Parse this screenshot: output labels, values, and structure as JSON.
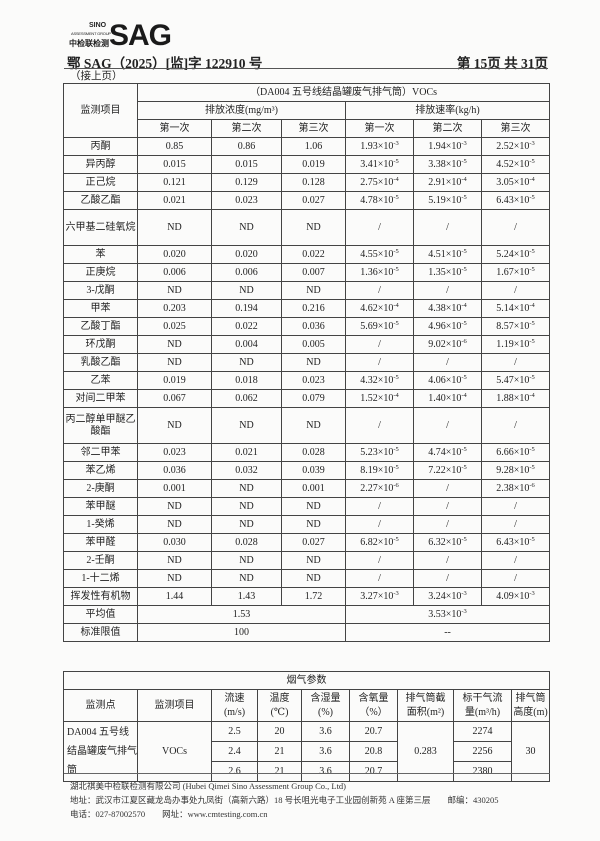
{
  "header": {
    "logo": {
      "sino": "SINO",
      "group": "ASSESSMENT GROUP",
      "cn": "中检联检测",
      "sag": "SAG"
    },
    "doc_number": "鄂 SAG（2025）[监]字 122910 号",
    "page": "第 15页  共 31页",
    "continued": "（接上页）"
  },
  "main_table": {
    "item_header": "监测项目",
    "title": "（DA004 五号线结晶罐废气排气筒）VOCs",
    "conc_header": "排放浓度(mg/m³)",
    "rate_header": "排放速率(kg/h)",
    "runs": [
      "第一次",
      "第二次",
      "第三次",
      "第一次",
      "第二次",
      "第三次"
    ],
    "rows": [
      {
        "name": "丙酮",
        "conc": [
          "0.85",
          "0.86",
          "1.06"
        ],
        "rate": [
          {
            "b": "1.93×10",
            "e": "-3"
          },
          {
            "b": "1.94×10",
            "e": "-3"
          },
          {
            "b": "2.52×10",
            "e": "-3"
          }
        ]
      },
      {
        "name": "异丙醇",
        "conc": [
          "0.015",
          "0.015",
          "0.019"
        ],
        "rate": [
          {
            "b": "3.41×10",
            "e": "-5"
          },
          {
            "b": "3.38×10",
            "e": "-5"
          },
          {
            "b": "4.52×10",
            "e": "-5"
          }
        ]
      },
      {
        "name": "正己烷",
        "conc": [
          "0.121",
          "0.129",
          "0.128"
        ],
        "rate": [
          {
            "b": "2.75×10",
            "e": "-4"
          },
          {
            "b": "2.91×10",
            "e": "-4"
          },
          {
            "b": "3.05×10",
            "e": "-4"
          }
        ]
      },
      {
        "name": "乙酸乙酯",
        "conc": [
          "0.021",
          "0.023",
          "0.027"
        ],
        "rate": [
          {
            "b": "4.78×10",
            "e": "-5"
          },
          {
            "b": "5.19×10",
            "e": "-5"
          },
          {
            "b": "6.43×10",
            "e": "-5"
          }
        ]
      },
      {
        "name": "六甲基二硅氧烷",
        "conc": [
          "ND",
          "ND",
          "ND"
        ],
        "rate": [
          {
            "b": "/"
          },
          {
            "b": "/"
          },
          {
            "b": "/"
          }
        ],
        "double": true
      },
      {
        "name": "苯",
        "conc": [
          "0.020",
          "0.020",
          "0.022"
        ],
        "rate": [
          {
            "b": "4.55×10",
            "e": "-5"
          },
          {
            "b": "4.51×10",
            "e": "-5"
          },
          {
            "b": "5.24×10",
            "e": "-5"
          }
        ]
      },
      {
        "name": "正庚烷",
        "conc": [
          "0.006",
          "0.006",
          "0.007"
        ],
        "rate": [
          {
            "b": "1.36×10",
            "e": "-5"
          },
          {
            "b": "1.35×10",
            "e": "-5"
          },
          {
            "b": "1.67×10",
            "e": "-5"
          }
        ]
      },
      {
        "name": "3-戊酮",
        "conc": [
          "ND",
          "ND",
          "ND"
        ],
        "rate": [
          {
            "b": "/"
          },
          {
            "b": "/"
          },
          {
            "b": "/"
          }
        ]
      },
      {
        "name": "甲苯",
        "conc": [
          "0.203",
          "0.194",
          "0.216"
        ],
        "rate": [
          {
            "b": "4.62×10",
            "e": "-4"
          },
          {
            "b": "4.38×10",
            "e": "-4"
          },
          {
            "b": "5.14×10",
            "e": "-4"
          }
        ]
      },
      {
        "name": "乙酸丁酯",
        "conc": [
          "0.025",
          "0.022",
          "0.036"
        ],
        "rate": [
          {
            "b": "5.69×10",
            "e": "-5"
          },
          {
            "b": "4.96×10",
            "e": "-5"
          },
          {
            "b": "8.57×10",
            "e": "-5"
          }
        ]
      },
      {
        "name": "环戊酮",
        "conc": [
          "ND",
          "0.004",
          "0.005"
        ],
        "rate": [
          {
            "b": "/"
          },
          {
            "b": "9.02×10",
            "e": "-6"
          },
          {
            "b": "1.19×10",
            "e": "-5"
          }
        ]
      },
      {
        "name": "乳酸乙酯",
        "conc": [
          "ND",
          "ND",
          "ND"
        ],
        "rate": [
          {
            "b": "/"
          },
          {
            "b": "/"
          },
          {
            "b": "/"
          }
        ]
      },
      {
        "name": "乙苯",
        "conc": [
          "0.019",
          "0.018",
          "0.023"
        ],
        "rate": [
          {
            "b": "4.32×10",
            "e": "-5"
          },
          {
            "b": "4.06×10",
            "e": "-5"
          },
          {
            "b": "5.47×10",
            "e": "-5"
          }
        ]
      },
      {
        "name": "对间二甲苯",
        "conc": [
          "0.067",
          "0.062",
          "0.079"
        ],
        "rate": [
          {
            "b": "1.52×10",
            "e": "-4"
          },
          {
            "b": "1.40×10",
            "e": "-4"
          },
          {
            "b": "1.88×10",
            "e": "-4"
          }
        ]
      },
      {
        "name": "丙二醇单甲醚乙酸酯",
        "conc": [
          "ND",
          "ND",
          "ND"
        ],
        "rate": [
          {
            "b": "/"
          },
          {
            "b": "/"
          },
          {
            "b": "/"
          }
        ],
        "double": true
      },
      {
        "name": "邻二甲苯",
        "conc": [
          "0.023",
          "0.021",
          "0.028"
        ],
        "rate": [
          {
            "b": "5.23×10",
            "e": "-5"
          },
          {
            "b": "4.74×10",
            "e": "-5"
          },
          {
            "b": "6.66×10",
            "e": "-5"
          }
        ]
      },
      {
        "name": "苯乙烯",
        "conc": [
          "0.036",
          "0.032",
          "0.039"
        ],
        "rate": [
          {
            "b": "8.19×10",
            "e": "-5"
          },
          {
            "b": "7.22×10",
            "e": "-5"
          },
          {
            "b": "9.28×10",
            "e": "-5"
          }
        ]
      },
      {
        "name": "2-庚酮",
        "conc": [
          "0.001",
          "ND",
          "0.001"
        ],
        "rate": [
          {
            "b": "2.27×10",
            "e": "-6"
          },
          {
            "b": "/"
          },
          {
            "b": "2.38×10",
            "e": "-6"
          }
        ]
      },
      {
        "name": "苯甲醚",
        "conc": [
          "ND",
          "ND",
          "ND"
        ],
        "rate": [
          {
            "b": "/"
          },
          {
            "b": "/"
          },
          {
            "b": "/"
          }
        ]
      },
      {
        "name": "1-癸烯",
        "conc": [
          "ND",
          "ND",
          "ND"
        ],
        "rate": [
          {
            "b": "/"
          },
          {
            "b": "/"
          },
          {
            "b": "/"
          }
        ]
      },
      {
        "name": "苯甲醛",
        "conc": [
          "0.030",
          "0.028",
          "0.027"
        ],
        "rate": [
          {
            "b": "6.82×10",
            "e": "-5"
          },
          {
            "b": "6.32×10",
            "e": "-5"
          },
          {
            "b": "6.43×10",
            "e": "-5"
          }
        ]
      },
      {
        "name": "2-壬酮",
        "conc": [
          "ND",
          "ND",
          "ND"
        ],
        "rate": [
          {
            "b": "/"
          },
          {
            "b": "/"
          },
          {
            "b": "/"
          }
        ]
      },
      {
        "name": "1-十二烯",
        "conc": [
          "ND",
          "ND",
          "ND"
        ],
        "rate": [
          {
            "b": "/"
          },
          {
            "b": "/"
          },
          {
            "b": "/"
          }
        ]
      },
      {
        "name": "挥发性有机物",
        "conc": [
          "1.44",
          "1.43",
          "1.72"
        ],
        "rate": [
          {
            "b": "3.27×10",
            "e": "-3"
          },
          {
            "b": "3.24×10",
            "e": "-3"
          },
          {
            "b": "4.09×10",
            "e": "-3"
          }
        ]
      }
    ],
    "average": {
      "label": "平均值",
      "conc": "1.53",
      "rate": {
        "b": "3.53×10",
        "e": "-3"
      }
    },
    "limit": {
      "label": "标准限值",
      "conc": "100",
      "rate": "--"
    }
  },
  "flue_table": {
    "title": "烟气参数",
    "headers": [
      "监测点",
      "监测项目",
      "流速\n(m/s)",
      "温度\n(℃)",
      "含湿量\n(%)",
      "含氧量\n（%）",
      "排气筒截\n面积(m²)",
      "标干气流\n量(m³/h)",
      "排气筒\n高度(m)"
    ],
    "point": "DA004 五号线结晶罐废气排气筒",
    "item": "VOCs",
    "rows": [
      {
        "speed": "2.5",
        "temp": "20",
        "moist": "3.6",
        "oxy": "20.7",
        "flow": "2274"
      },
      {
        "speed": "2.4",
        "temp": "21",
        "moist": "3.6",
        "oxy": "20.8",
        "flow": "2256"
      },
      {
        "speed": "2.6",
        "temp": "21",
        "moist": "3.6",
        "oxy": "20.7",
        "flow": "2380"
      }
    ],
    "area": "0.283",
    "height": "30"
  },
  "footer": {
    "company": "湖北祺美中检联检测有限公司 (Hubei Qimei Sino Assessment Group Co., Ltd)",
    "address": "地址：武汉市江夏区藏龙岛办事处九凤街（高新六路）18 号长咀光电子工业园创新苑 A 座第三层　　邮编：430205",
    "contact": "电话：027-87002570　　网址：www.cmtesting.com.cn"
  }
}
